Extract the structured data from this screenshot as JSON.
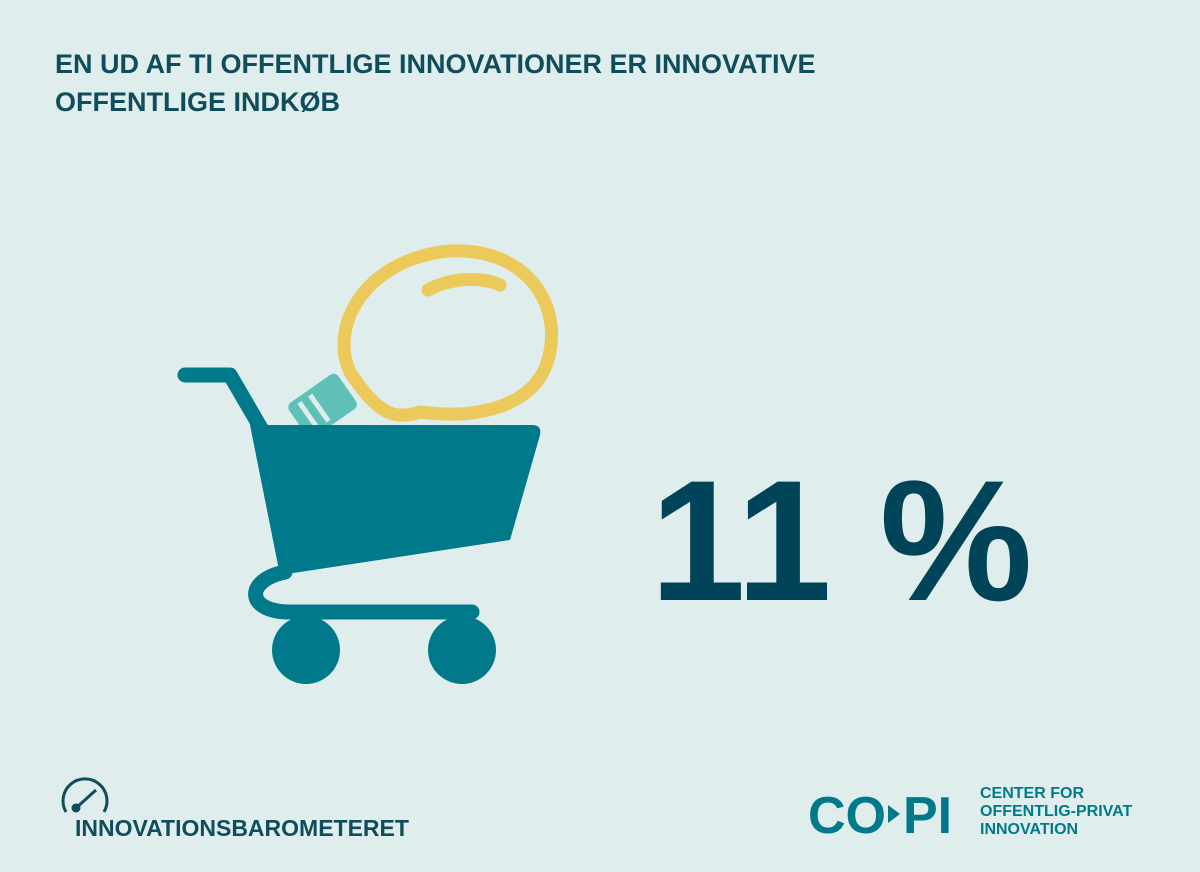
{
  "header": {
    "title_lines": [
      "EN UD AF TI OFFENTLIGE INNOVATIONER ER INNOVATIVE",
      "OFFENTLIGE INDKØB"
    ]
  },
  "stat": {
    "text": "11 %"
  },
  "footer": {
    "left_logo": "INNOVATIONSBAROMETERET",
    "right_logo": {
      "mark_left": "CO",
      "mark_right": "PI",
      "lines": [
        "CENTER FOR",
        "OFFENTLIG-PRIVAT",
        "INNOVATION"
      ]
    }
  }
}
